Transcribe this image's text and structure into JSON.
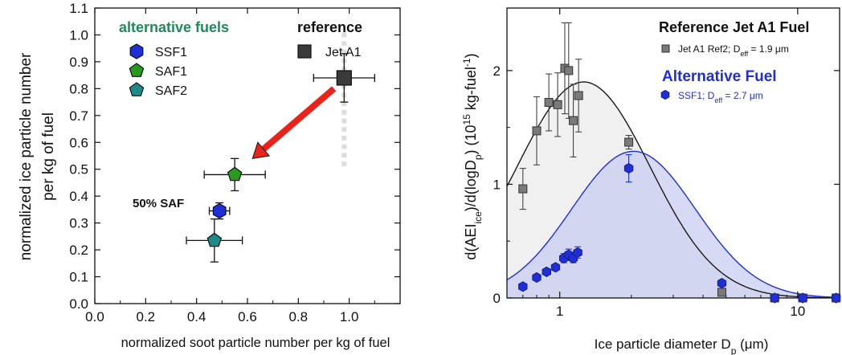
{
  "chart_data": [
    {
      "type": "scatter",
      "xlabel": "normalized soot particle number per kg of fuel",
      "ylabel": [
        "normalized ice particle number",
        "per kg of fuel"
      ],
      "xlim": [
        0.0,
        1.2
      ],
      "ylim": [
        0.0,
        1.1
      ],
      "x_ticks": [
        "0.0",
        "0.2",
        "0.4",
        "0.6",
        "0.8",
        "1.0"
      ],
      "y_ticks": [
        "0.0",
        "0.1",
        "0.2",
        "0.3",
        "0.4",
        "0.5",
        "0.6",
        "0.7",
        "0.8",
        "0.9",
        "1.0",
        "1.1"
      ],
      "legend": {
        "title_alt": "alternative fuels",
        "title_ref": "reference",
        "entries": [
          {
            "label": "SSF1",
            "color": "#1f2fd6",
            "marker": "hexagon"
          },
          {
            "label": "SAF1",
            "color": "#2a9a1e",
            "marker": "pentagon"
          },
          {
            "label": "SAF2",
            "color": "#1f8a8a",
            "marker": "pentagon"
          },
          {
            "label": "Jet A1",
            "color": "#3a3a3a",
            "marker": "square"
          }
        ]
      },
      "annotation": "50% SAF",
      "series": [
        {
          "name": "Jet A1",
          "x": 0.98,
          "y": 0.84,
          "xerr": 0.12,
          "yerr": 0.09,
          "color": "#3a3a3a",
          "marker": "square"
        },
        {
          "name": "SAF1",
          "x": 0.55,
          "y": 0.48,
          "xerr": 0.12,
          "yerr": 0.06,
          "color": "#2a9a1e",
          "marker": "pentagon"
        },
        {
          "name": "SSF1",
          "x": 0.49,
          "y": 0.345,
          "xerr": 0.04,
          "yerr": 0.03,
          "color": "#1f2fd6",
          "marker": "hexagon"
        },
        {
          "name": "SAF2",
          "x": 0.47,
          "y": 0.235,
          "xerr": 0.11,
          "yerr": 0.08,
          "color": "#1f8a8a",
          "marker": "pentagon"
        }
      ],
      "arrow": {
        "from": [
          0.94,
          0.8
        ],
        "to": [
          0.62,
          0.54
        ],
        "color": "#e8231b"
      }
    },
    {
      "type": "line",
      "x_scale": "log",
      "xlabel": "Ice particle diameter D_p (μm)",
      "ylabel": "d(AEI_ice)/d(logD_p) (10^15 kg-fuel^-1)",
      "xlim": [
        0.6,
        15
      ],
      "ylim": [
        0,
        2.55
      ],
      "x_ticks": [
        "1",
        "10"
      ],
      "y_ticks": [
        "0",
        "1",
        "2"
      ],
      "legend": {
        "ref_title": "Reference Jet A1 Fuel",
        "ref_entry": {
          "label": "Jet A1 Ref2; D",
          "sub": "eff",
          "value": " = 1.9 μm"
        },
        "alt_title": "Alternative Fuel",
        "alt_entry": {
          "label": "SSF1; D",
          "sub": "eff",
          "value": " = 2.7 μm"
        }
      },
      "series": [
        {
          "name": "Jet A1 Ref2",
          "color": "#7a7a7a",
          "marker": "square",
          "fit": {
            "mu_log10": 0.1,
            "sigma_log10": 0.28,
            "amplitude": 1.9
          },
          "fit_color": "#1a1a1a",
          "fill_color": "#eeeeee",
          "points": [
            {
              "x": 0.7,
              "y": 0.96,
              "err": 0.18
            },
            {
              "x": 0.8,
              "y": 1.47,
              "err": 0.3
            },
            {
              "x": 0.9,
              "y": 1.72,
              "err": 0.25
            },
            {
              "x": 0.98,
              "y": 1.7,
              "err": 0.28
            },
            {
              "x": 1.05,
              "y": 2.02,
              "err": 0.4
            },
            {
              "x": 1.09,
              "y": 2.0,
              "err": 0.42
            },
            {
              "x": 1.14,
              "y": 1.56,
              "err": 0.32
            },
            {
              "x": 1.2,
              "y": 1.78,
              "err": 0.32
            },
            {
              "x": 1.95,
              "y": 1.37,
              "err": 0.06
            },
            {
              "x": 4.8,
              "y": 0.05,
              "err": 0.0
            },
            {
              "x": 8.0,
              "y": 0.0,
              "err": 0.0
            },
            {
              "x": 10.5,
              "y": 0.0,
              "err": 0.0
            },
            {
              "x": 14.5,
              "y": 0.0,
              "err": 0.0
            }
          ]
        },
        {
          "name": "SSF1",
          "color": "#1f2fd6",
          "marker": "hexagon",
          "fit": {
            "mu_log10": 0.31,
            "sigma_log10": 0.26,
            "amplitude": 1.29
          },
          "fit_color": "#1f2fd6",
          "fill_color": "#c9cdf0",
          "points": [
            {
              "x": 0.7,
              "y": 0.1,
              "err": 0.0
            },
            {
              "x": 0.8,
              "y": 0.18,
              "err": 0.0
            },
            {
              "x": 0.88,
              "y": 0.23,
              "err": 0.0
            },
            {
              "x": 0.96,
              "y": 0.27,
              "err": 0.0
            },
            {
              "x": 1.04,
              "y": 0.35,
              "err": 0.04
            },
            {
              "x": 1.09,
              "y": 0.38,
              "err": 0.05
            },
            {
              "x": 1.14,
              "y": 0.35,
              "err": 0.04
            },
            {
              "x": 1.19,
              "y": 0.4,
              "err": 0.05
            },
            {
              "x": 1.95,
              "y": 1.14,
              "err": 0.12
            },
            {
              "x": 4.8,
              "y": 0.13,
              "err": 0.0
            },
            {
              "x": 8.0,
              "y": 0.0,
              "err": 0.0
            },
            {
              "x": 10.5,
              "y": 0.0,
              "err": 0.0
            },
            {
              "x": 14.5,
              "y": 0.0,
              "err": 0.0
            }
          ]
        }
      ]
    }
  ]
}
